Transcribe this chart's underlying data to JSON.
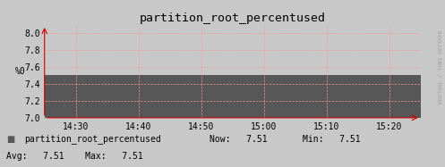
{
  "title": "partition_root_percentused",
  "ylabel": "%0",
  "background_color": "#c8c8c8",
  "plot_bg_color": "#c8c8c8",
  "fill_color": "#575757",
  "grid_color": "#ff9999",
  "yticks": [
    7.0,
    7.2,
    7.4,
    7.6,
    7.8,
    8.0
  ],
  "ylim": [
    7.0,
    8.1
  ],
  "xtick_labels": [
    "14:30",
    "14:40",
    "14:50",
    "15:00",
    "15:10",
    "15:20"
  ],
  "data_value": 7.51,
  "legend_label": "partition_root_percentused",
  "legend_fill_color": "#575757",
  "now_val": "7.51",
  "min_val": "7.51",
  "avg_val": "7.51",
  "max_val": "7.51",
  "axis_color": "#cc0000",
  "watermark": "RRDTOOL / TOBI OETIKER",
  "title_fontsize": 9.5,
  "tick_fontsize": 7,
  "legend_fontsize": 7
}
